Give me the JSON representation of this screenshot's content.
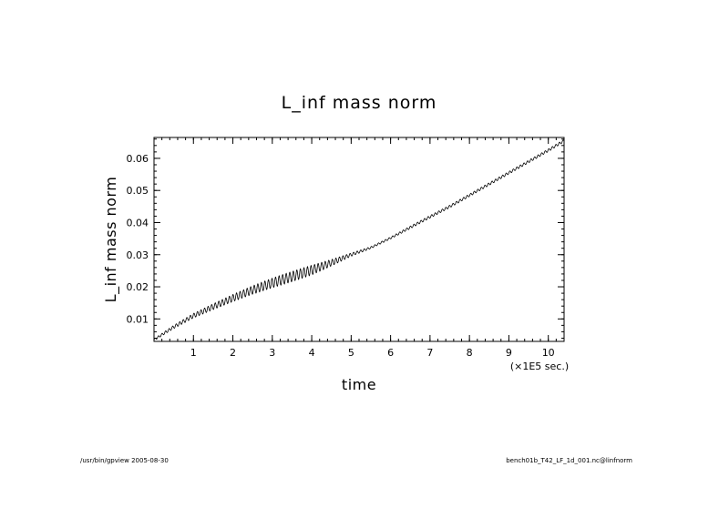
{
  "chart_data": {
    "type": "line",
    "title": "L_inf mass norm",
    "xlabel": "time",
    "ylabel": "L_inf mass norm",
    "x_unit_label": "(×1E5 sec.)",
    "xlim": [
      0,
      10.4
    ],
    "ylim": [
      0.003,
      0.0665
    ],
    "x_ticks": [
      1,
      2,
      3,
      4,
      5,
      6,
      7,
      8,
      9,
      10
    ],
    "x_tick_labels": [
      "1",
      "2",
      "3",
      "4",
      "5",
      "6",
      "7",
      "8",
      "9",
      "10"
    ],
    "y_ticks": [
      0.01,
      0.02,
      0.03,
      0.04,
      0.05,
      0.06
    ],
    "y_tick_labels": [
      "0.01",
      "0.02",
      "0.03",
      "0.04",
      "0.05",
      "0.06"
    ],
    "grid": false,
    "series": [
      {
        "x": [
          0,
          0.5,
          1,
          1.5,
          2,
          2.5,
          3,
          3.5,
          4,
          4.5,
          5,
          5.5,
          6,
          6.5,
          7,
          7.5,
          8,
          8.5,
          9,
          9.5,
          10,
          10.4
        ],
        "values": [
          0.0035,
          0.0075,
          0.011,
          0.0138,
          0.0165,
          0.019,
          0.0212,
          0.0232,
          0.0252,
          0.0275,
          0.03,
          0.0322,
          0.0352,
          0.0385,
          0.0418,
          0.045,
          0.0485,
          0.052,
          0.0555,
          0.059,
          0.0625,
          0.0655
        ],
        "oscillation_amplitude": [
          0.0003,
          0.0005,
          0.0007,
          0.0009,
          0.0011,
          0.0013,
          0.0015,
          0.0016,
          0.0015,
          0.001,
          0.0005,
          0.0003,
          0.0003,
          0.0004,
          0.0004,
          0.0004,
          0.0004,
          0.0004,
          0.0004,
          0.0004,
          0.0004,
          0.0004
        ],
        "color": "#000000"
      }
    ]
  },
  "footer": {
    "left": "/usr/bin/gpview  2005-08-30",
    "right": "bench01b_T42_LF_1d_001.nc@linfnorm"
  }
}
